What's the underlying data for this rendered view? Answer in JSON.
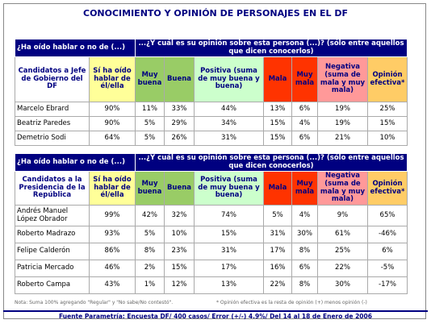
{
  "title": "CONOCIMIENTO Y OPINIÓN DE PERSONAJES EN EL DF",
  "tables": [
    {
      "header_left": "¿Ha oído hablar o no de (...)",
      "header_right": "...¿Y cuál es su opinión sobre esta persona (...)? (sólo entre aquellos que dicen conocerlos)",
      "columns": [
        "Candidatos a Jefe de Gobierno del DF",
        "Sí ha oído hablar de él/ella",
        "Muy buena",
        "Buena",
        "Positiva (suma de muy buena y buena)",
        "Mala",
        "Muy mala",
        "Negativa (suma de mala y muy mala)",
        "Opinión efectiva*"
      ],
      "rows": [
        [
          "Marcelo Ebrard",
          "90%",
          "11%",
          "33%",
          "44%",
          "13%",
          "6%",
          "19%",
          "25%"
        ],
        [
          "Beatriz Paredes",
          "90%",
          "5%",
          "29%",
          "34%",
          "15%",
          "4%",
          "19%",
          "15%"
        ],
        [
          "Demetrio Sodi",
          "64%",
          "5%",
          "26%",
          "31%",
          "15%",
          "6%",
          "21%",
          "10%"
        ]
      ]
    },
    {
      "header_left": "¿Ha oído hablar o no de (...)",
      "header_right": "...¿Y cuál es su opinión sobre esta persona (...)? (sólo entre aquellos que dicen conocerlos)",
      "columns": [
        "Candidatos a la Presidencia de la República",
        "Sí ha oído hablar de él/ella",
        "Muy buena",
        "Buena",
        "Positiva (suma de muy buena y buena)",
        "Mala",
        "Muy mala",
        "Negativa (suma de mala y muy mala)",
        "Opinión efectiva*"
      ],
      "rows": [
        [
          "Andrés Manuel López Obrador",
          "99%",
          "42%",
          "32%",
          "74%",
          "5%",
          "4%",
          "9%",
          "65%"
        ],
        [
          "Roberto Madrazo",
          "93%",
          "5%",
          "10%",
          "15%",
          "31%",
          "30%",
          "61%",
          "-46%"
        ],
        [
          "Felipe Calderón",
          "86%",
          "8%",
          "23%",
          "31%",
          "17%",
          "8%",
          "25%",
          "6%"
        ],
        [
          "Patricia Mercado",
          "46%",
          "2%",
          "15%",
          "17%",
          "16%",
          "6%",
          "22%",
          "-5%"
        ],
        [
          "Roberto Campa",
          "43%",
          "1%",
          "12%",
          "13%",
          "22%",
          "8%",
          "30%",
          "-17%"
        ]
      ]
    }
  ],
  "notes": [
    "Nota: Suma 100% agregando \"Regular\" y \"No sabe/No contestó\".",
    "* Opinión efectiva es la resta de opinión (+) menos opinión (-)"
  ],
  "footer": "Fuente Parametría: Encuesta DF/ 400 casos/ Error (+/-) 4.9%/ Del 14 al 18 de Enero de 2006"
}
